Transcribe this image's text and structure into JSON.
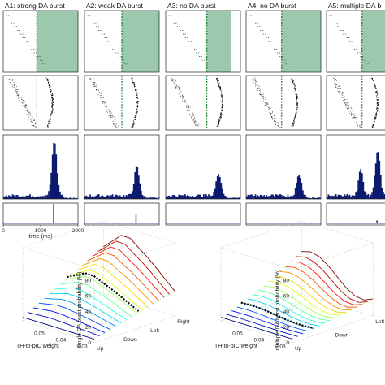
{
  "columns": [
    {
      "label": "A1: strong DA burst",
      "shaded": true,
      "shade_start": 900,
      "shade_end": 2000,
      "hist_peak": 180,
      "single_peak": 1.0,
      "single_x": 1350
    },
    {
      "label": "A2: weak DA burst",
      "shaded": true,
      "shade_start": 1000,
      "shade_end": 2000,
      "hist_peak": 95,
      "single_peak": 0.45,
      "single_x": 1380
    },
    {
      "label": "A3: no DA burst",
      "shaded": true,
      "shade_start": 1100,
      "shade_end": 1750,
      "hist_peak": 75,
      "single_peak": 0.0,
      "single_x": 1400
    },
    {
      "label": "A4: no DA burst",
      "shaded": true,
      "shade_start": 950,
      "shade_end": 2000,
      "hist_peak": 70,
      "single_peak": 0.0,
      "single_x": 1400
    },
    {
      "label": "A5: multiple DA b",
      "shaded": true,
      "shade_start": 950,
      "shade_end": 2000,
      "hist_peak": 150,
      "single_peak": 0.15,
      "single_x": 1350
    }
  ],
  "time_axis": {
    "label": "time (ms)",
    "ticks": [
      "0",
      "1000",
      "2000"
    ],
    "range": [
      0,
      2000
    ]
  },
  "colors": {
    "shade": "#9cc9ad",
    "dashed_line": "#1f8a3e",
    "bar": "#0b1a6e",
    "raster": "#333333"
  },
  "surface_left": {
    "zlabel": "single DA burst probability (%)",
    "zticks": [
      "80",
      "60",
      "40",
      "20",
      "0"
    ],
    "xlabel": "TH-to-pIC weight",
    "xticks": [
      "0.05",
      "0.04",
      "0.03"
    ],
    "ylabel": "",
    "yticks": [
      "Up",
      "Down",
      "Left",
      "Right"
    ]
  },
  "surface_right": {
    "zlabel": "multiple DA burst probability (%)",
    "zticks": [
      "80",
      "60",
      "40",
      "20",
      "0"
    ],
    "xlabel": "TH-to-pIC weight",
    "xticks": [
      "0.05",
      "0.04",
      "0.03"
    ],
    "ylabel": "",
    "yticks": [
      "Up",
      "Down",
      "Left"
    ]
  },
  "chart_data": [
    {
      "type": "area",
      "title": "",
      "xlabel": "time (ms)",
      "ylabel": "",
      "xlim": [
        0,
        2000
      ],
      "series": [
        {
          "values_by_column": [
            180,
            95,
            75,
            70,
            150
          ]
        }
      ]
    },
    {
      "type": "heatmap",
      "title": "",
      "xlabel": "TH-to-pIC weight",
      "ylabel": "",
      "zlabel": "single DA burst probability (%)",
      "x": [
        0.03,
        0.04,
        0.05
      ],
      "y": [
        "Up",
        "Down",
        "Left",
        "Right"
      ],
      "zlim": [
        0,
        80
      ]
    },
    {
      "type": "heatmap",
      "title": "",
      "xlabel": "TH-to-pIC weight",
      "ylabel": "",
      "zlabel": "multiple DA burst probability (%)",
      "x": [
        0.03,
        0.04,
        0.05
      ],
      "y": [
        "Up",
        "Down",
        "Left"
      ],
      "zlim": [
        0,
        80
      ]
    }
  ]
}
